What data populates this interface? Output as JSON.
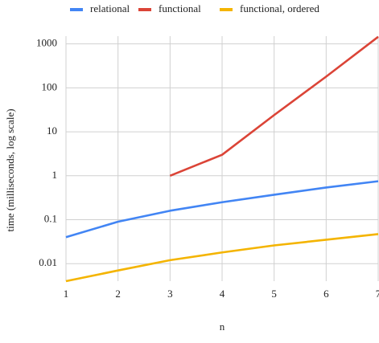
{
  "chart_data": {
    "type": "line",
    "title": "",
    "xlabel": "n",
    "ylabel": "time (milliseconds, log scale)",
    "x": [
      1,
      2,
      3,
      4,
      5,
      6,
      7
    ],
    "xlim": [
      1,
      7
    ],
    "ylim": [
      0.004,
      1500
    ],
    "yscale": "log",
    "yticks": [
      0.01,
      0.1,
      1,
      10,
      100,
      1000
    ],
    "ytick_labels": [
      "0.01",
      "0.1",
      "1",
      "10",
      "100",
      "1000"
    ],
    "xtick_labels": [
      "1",
      "2",
      "3",
      "4",
      "5",
      "6",
      "7"
    ],
    "grid": true,
    "legend_position": "top",
    "series": [
      {
        "name": "relational",
        "color": "#4285F4",
        "x": [
          1,
          2,
          3,
          4,
          5,
          6,
          7
        ],
        "values": [
          0.04,
          0.09,
          0.16,
          0.25,
          0.37,
          0.54,
          0.75
        ]
      },
      {
        "name": "functional",
        "color": "#DB4437",
        "x": [
          3,
          4,
          5,
          6,
          7
        ],
        "values": [
          1.0,
          3.0,
          24,
          180,
          1450
        ]
      },
      {
        "name": "functional, ordered",
        "color": "#F4B400",
        "x": [
          1,
          2,
          3,
          4,
          5,
          6,
          7
        ],
        "values": [
          0.004,
          0.007,
          0.012,
          0.018,
          0.026,
          0.035,
          0.047
        ]
      }
    ]
  }
}
